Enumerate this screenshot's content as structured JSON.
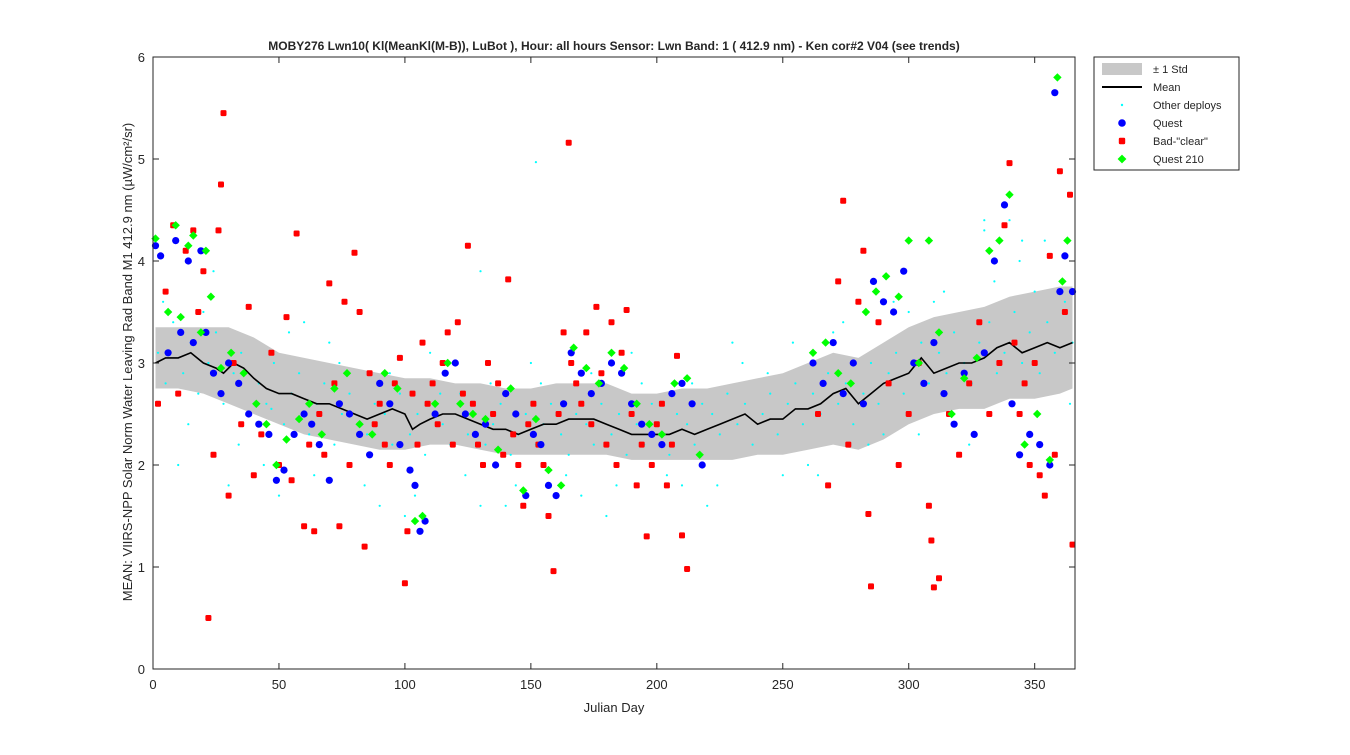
{
  "chart_data": {
    "type": "scatter",
    "title": "MOBY276   Lwn10( Kl(MeanKl(M-B)), LuBot ),   Hour: all hours  Sensor: Lwn Band: 1 ( 412.9 nm)  - Ken cor#2 V04 (see trends)",
    "xlabel": "Julian Day",
    "ylabel": "MEAN: VIIRS-NPP Solar Norm Water Leaving Rad Band M1 412.9 nm (µW/cm²/sr)",
    "xlim": [
      0,
      366
    ],
    "ylim": [
      0,
      6
    ],
    "xticks": [
      0,
      50,
      100,
      150,
      200,
      250,
      300,
      350
    ],
    "yticks": [
      0,
      1,
      2,
      3,
      4,
      5,
      6
    ],
    "legend_position": "outside-top-right",
    "colors": {
      "std_band": "#c8c8c8",
      "mean": "#000000",
      "other": "#00ffff",
      "quest": "#0000ff",
      "bad_clear": "#ff0000",
      "quest210": "#00ff00"
    },
    "legend": [
      {
        "key": "std",
        "label": "± 1 Std"
      },
      {
        "key": "mean",
        "label": "Mean"
      },
      {
        "key": "other",
        "label": "Other deploys"
      },
      {
        "key": "quest",
        "label": "Quest"
      },
      {
        "key": "bad",
        "label": "Bad-\"clear\""
      },
      {
        "key": "q210",
        "label": "Quest 210"
      }
    ],
    "mean_series": {
      "name": "Mean",
      "x": [
        1,
        5,
        10,
        15,
        20,
        25,
        28,
        32,
        36,
        40,
        45,
        50,
        55,
        60,
        65,
        70,
        75,
        80,
        85,
        90,
        95,
        100,
        103,
        106,
        110,
        115,
        120,
        125,
        130,
        135,
        140,
        145,
        150,
        155,
        160,
        165,
        170,
        175,
        180,
        185,
        190,
        195,
        200,
        205,
        210,
        215,
        220,
        225,
        230,
        235,
        240,
        245,
        250,
        255,
        260,
        265,
        270,
        275,
        280,
        285,
        290,
        295,
        300,
        305,
        310,
        315,
        320,
        325,
        330,
        335,
        340,
        345,
        350,
        355,
        360,
        365
      ],
      "y": [
        3.0,
        3.05,
        3.05,
        3.1,
        3.0,
        2.95,
        2.9,
        3.0,
        2.95,
        2.85,
        2.75,
        2.7,
        2.7,
        2.65,
        2.6,
        2.6,
        2.55,
        2.5,
        2.45,
        2.5,
        2.55,
        2.5,
        2.35,
        2.4,
        2.45,
        2.5,
        2.5,
        2.45,
        2.4,
        2.35,
        2.35,
        2.3,
        2.35,
        2.4,
        2.4,
        2.45,
        2.45,
        2.45,
        2.4,
        2.35,
        2.3,
        2.3,
        2.3,
        2.3,
        2.35,
        2.3,
        2.35,
        2.4,
        2.45,
        2.5,
        2.4,
        2.45,
        2.45,
        2.55,
        2.55,
        2.6,
        2.7,
        2.75,
        2.6,
        2.7,
        2.8,
        2.85,
        2.9,
        3.05,
        2.9,
        2.95,
        3.0,
        3.0,
        3.05,
        3.15,
        3.2,
        3.1,
        3.15,
        3.2,
        3.15,
        3.2
      ]
    },
    "std_band": {
      "name": "± 1 Std",
      "x": [
        1,
        10,
        20,
        30,
        40,
        50,
        60,
        70,
        80,
        90,
        100,
        110,
        120,
        130,
        140,
        150,
        160,
        170,
        180,
        190,
        200,
        210,
        220,
        230,
        240,
        250,
        260,
        270,
        280,
        290,
        300,
        310,
        320,
        330,
        340,
        350,
        360,
        365
      ],
      "lower": [
        2.75,
        2.75,
        2.7,
        2.6,
        2.5,
        2.4,
        2.3,
        2.25,
        2.2,
        2.15,
        2.15,
        2.2,
        2.2,
        2.15,
        2.1,
        2.1,
        2.1,
        2.1,
        2.1,
        2.05,
        2.05,
        2.05,
        2.05,
        2.05,
        2.1,
        2.1,
        2.15,
        2.2,
        2.15,
        2.25,
        2.4,
        2.5,
        2.55,
        2.55,
        2.65,
        2.65,
        2.7,
        2.75
      ],
      "upper": [
        3.35,
        3.35,
        3.35,
        3.35,
        3.25,
        3.1,
        3.05,
        3.0,
        2.95,
        2.9,
        2.85,
        2.85,
        2.8,
        2.8,
        2.75,
        2.75,
        2.8,
        2.8,
        2.8,
        2.7,
        2.7,
        2.75,
        2.75,
        2.8,
        2.85,
        2.9,
        3.0,
        3.1,
        3.05,
        3.2,
        3.35,
        3.45,
        3.5,
        3.55,
        3.65,
        3.7,
        3.75,
        3.75
      ]
    },
    "other_deploys": {
      "name": "Other deploys",
      "x": [
        2,
        5,
        8,
        12,
        15,
        18,
        22,
        25,
        28,
        32,
        35,
        38,
        42,
        45,
        48,
        52,
        55,
        58,
        62,
        65,
        68,
        72,
        75,
        78,
        82,
        85,
        88,
        92,
        95,
        98,
        102,
        105,
        108,
        112,
        115,
        118,
        122,
        125,
        128,
        132,
        135,
        138,
        142,
        145,
        148,
        152,
        155,
        158,
        162,
        165,
        168,
        172,
        175,
        178,
        182,
        185,
        188,
        192,
        195,
        198,
        202,
        205,
        208,
        212,
        215,
        218,
        222,
        225,
        228,
        232,
        235,
        238,
        242,
        245,
        248,
        252,
        255,
        258,
        262,
        265,
        268,
        272,
        275,
        278,
        282,
        285,
        288,
        292,
        295,
        298,
        302,
        305,
        308,
        312,
        315,
        318,
        322,
        325,
        328,
        332,
        335,
        338,
        342,
        345,
        348,
        352,
        355,
        358,
        362,
        365,
        4,
        14,
        24,
        34,
        44,
        54,
        64,
        74,
        84,
        94,
        104,
        114,
        124,
        134,
        144,
        154,
        164,
        174,
        184,
        194,
        204,
        214,
        224,
        234,
        244,
        254,
        264,
        274,
        284,
        294,
        304,
        314,
        324,
        334,
        344,
        354,
        364,
        10,
        30,
        50,
        70,
        90,
        110,
        130,
        150,
        170,
        190,
        210,
        230,
        250,
        270,
        290,
        310,
        330,
        350,
        20,
        60,
        100,
        140,
        180,
        220,
        260,
        300,
        340,
        152,
        130,
        47,
        330,
        345
      ],
      "y": [
        3.1,
        2.8,
        3.4,
        2.9,
        3.2,
        2.7,
        3.0,
        3.3,
        2.6,
        2.9,
        3.1,
        2.5,
        2.8,
        2.6,
        3.0,
        2.4,
        2.7,
        2.9,
        2.3,
        2.6,
        2.8,
        2.2,
        2.5,
        2.7,
        2.4,
        2.3,
        2.6,
        2.5,
        2.2,
        2.7,
        2.3,
        2.5,
        2.1,
        2.6,
        2.4,
        2.2,
        2.7,
        2.3,
        2.5,
        2.2,
        2.4,
        2.6,
        2.1,
        2.3,
        2.5,
        2.2,
        2.4,
        2.6,
        2.3,
        2.1,
        2.5,
        2.4,
        2.2,
        2.6,
        2.3,
        2.5,
        2.1,
        2.4,
        2.2,
        2.6,
        2.3,
        2.1,
        2.5,
        2.4,
        2.2,
        2.6,
        2.5,
        2.3,
        2.7,
        2.4,
        2.6,
        2.2,
        2.5,
        2.7,
        2.3,
        2.6,
        2.8,
        2.4,
        2.7,
        2.5,
        2.9,
        2.6,
        2.8,
        2.4,
        2.7,
        3.0,
        2.6,
        2.9,
        3.1,
        2.7,
        3.0,
        3.2,
        2.8,
        3.1,
        2.9,
        3.3,
        3.0,
        2.8,
        3.2,
        3.4,
        2.9,
        3.1,
        3.5,
        3.0,
        3.3,
        2.9,
        3.4,
        3.1,
        3.6,
        3.2,
        3.6,
        2.4,
        3.9,
        2.2,
        2.0,
        3.3,
        1.9,
        3.0,
        1.8,
        2.9,
        1.7,
        2.7,
        1.9,
        2.8,
        1.8,
        2.8,
        1.9,
        2.9,
        1.8,
        2.8,
        1.9,
        2.8,
        1.8,
        3.0,
        2.9,
        3.2,
        1.9,
        3.4,
        2.2,
        3.6,
        2.3,
        3.7,
        2.2,
        3.8,
        4.0,
        4.2,
        2.6,
        2.0,
        1.8,
        1.7,
        3.2,
        1.6,
        3.1,
        1.6,
        3.0,
        1.7,
        3.1,
        1.8,
        3.2,
        1.9,
        3.3,
        2.3,
        3.6,
        4.3,
        3.7,
        3.5,
        3.4,
        1.5,
        1.6,
        1.5,
        1.6,
        2.0,
        3.5,
        4.4,
        4.97,
        3.9,
        2.55,
        4.4,
        4.2
      ]
    },
    "quest": {
      "name": "Quest",
      "x": [
        1,
        3,
        6,
        9,
        11,
        14,
        16,
        19,
        21,
        24,
        27,
        30,
        34,
        38,
        42,
        46,
        49,
        52,
        56,
        60,
        63,
        66,
        70,
        74,
        78,
        82,
        86,
        90,
        94,
        98,
        102,
        104,
        106,
        108,
        112,
        116,
        120,
        124,
        128,
        132,
        136,
        140,
        144,
        148,
        151,
        154,
        157,
        160,
        163,
        166,
        170,
        174,
        178,
        182,
        186,
        190,
        194,
        198,
        202,
        206,
        210,
        214,
        218,
        262,
        266,
        270,
        274,
        278,
        282,
        286,
        290,
        294,
        298,
        302,
        306,
        310,
        314,
        318,
        322,
        326,
        330,
        334,
        338,
        341,
        344,
        348,
        352,
        356,
        358,
        360,
        362,
        365
      ],
      "y": [
        4.15,
        4.05,
        3.1,
        4.2,
        3.3,
        4.0,
        3.2,
        4.1,
        3.3,
        2.9,
        2.7,
        3.0,
        2.8,
        2.5,
        2.4,
        2.3,
        1.85,
        1.95,
        2.3,
        2.5,
        2.4,
        2.2,
        1.85,
        2.6,
        2.5,
        2.3,
        2.1,
        2.8,
        2.6,
        2.2,
        1.95,
        1.8,
        1.35,
        1.45,
        2.5,
        2.9,
        3.0,
        2.5,
        2.3,
        2.4,
        2.0,
        2.7,
        2.5,
        1.7,
        2.3,
        2.2,
        1.8,
        1.7,
        2.6,
        3.1,
        2.9,
        2.7,
        2.8,
        3.0,
        2.9,
        2.6,
        2.4,
        2.3,
        2.2,
        2.7,
        2.8,
        2.6,
        2.0,
        3.0,
        2.8,
        3.2,
        2.7,
        3.0,
        2.6,
        3.8,
        3.6,
        3.5,
        3.9,
        3.0,
        2.8,
        3.2,
        2.7,
        2.4,
        2.9,
        2.3,
        3.1,
        4.0,
        4.55,
        2.6,
        2.1,
        2.3,
        2.2,
        2.0,
        5.65,
        3.7,
        4.05,
        3.7
      ]
    },
    "bad_clear": {
      "name": "Bad-\"clear\"",
      "x": [
        2,
        5,
        8,
        10,
        13,
        16,
        18,
        20,
        22,
        24,
        26,
        27,
        28,
        30,
        32,
        35,
        38,
        40,
        43,
        47,
        50,
        53,
        55,
        57,
        60,
        62,
        64,
        66,
        68,
        70,
        72,
        74,
        76,
        78,
        80,
        82,
        84,
        86,
        88,
        90,
        92,
        94,
        96,
        98,
        100,
        101,
        103,
        105,
        107,
        109,
        111,
        113,
        115,
        117,
        119,
        121,
        123,
        125,
        127,
        129,
        131,
        133,
        135,
        137,
        139,
        141,
        143,
        145,
        147,
        149,
        151,
        153,
        155,
        157,
        159,
        161,
        163,
        165,
        166,
        168,
        170,
        172,
        174,
        176,
        178,
        180,
        182,
        184,
        186,
        188,
        190,
        192,
        194,
        196,
        198,
        200,
        202,
        204,
        206,
        208,
        210,
        212,
        264,
        268,
        272,
        274,
        276,
        280,
        282,
        284,
        285,
        288,
        292,
        296,
        300,
        304,
        308,
        309,
        310,
        312,
        316,
        320,
        324,
        328,
        332,
        336,
        338,
        340,
        342,
        344,
        346,
        348,
        350,
        352,
        354,
        356,
        358,
        360,
        362,
        364,
        365
      ],
      "y": [
        2.6,
        3.7,
        4.35,
        2.7,
        4.1,
        4.3,
        3.5,
        3.9,
        0.5,
        2.1,
        4.3,
        4.75,
        5.45,
        1.7,
        3.0,
        2.4,
        3.55,
        1.9,
        2.3,
        3.1,
        2.0,
        3.45,
        1.85,
        4.27,
        1.4,
        2.2,
        1.35,
        2.5,
        2.1,
        3.78,
        2.8,
        1.4,
        3.6,
        2.0,
        4.08,
        3.5,
        1.2,
        2.9,
        2.4,
        2.6,
        2.2,
        2.0,
        2.8,
        3.05,
        0.84,
        1.35,
        2.7,
        2.2,
        3.2,
        2.6,
        2.8,
        2.4,
        3.0,
        3.3,
        2.2,
        3.4,
        2.7,
        4.15,
        2.6,
        2.2,
        2.0,
        3.0,
        2.5,
        2.8,
        2.1,
        3.82,
        2.3,
        2.0,
        1.6,
        2.4,
        2.6,
        2.2,
        2.0,
        1.5,
        0.96,
        2.5,
        3.3,
        5.16,
        3.0,
        2.8,
        2.6,
        3.3,
        2.4,
        3.55,
        2.9,
        2.2,
        3.4,
        2.0,
        3.1,
        3.52,
        2.5,
        1.8,
        2.2,
        1.3,
        2.0,
        2.4,
        2.6,
        1.8,
        2.2,
        3.07,
        1.31,
        0.98,
        2.5,
        1.8,
        3.8,
        4.59,
        2.2,
        3.6,
        4.1,
        1.52,
        0.81,
        3.4,
        2.8,
        2.0,
        2.5,
        3.0,
        1.6,
        1.26,
        0.8,
        0.89,
        2.5,
        2.1,
        2.8,
        3.4,
        2.5,
        3.0,
        4.35,
        4.96,
        3.2,
        2.5,
        2.8,
        2.0,
        3.0,
        1.9,
        1.7,
        4.05,
        2.1,
        4.88,
        3.5,
        4.65,
        1.22
      ]
    },
    "quest210": {
      "name": "Quest 210",
      "x": [
        1,
        6,
        9,
        11,
        14,
        16,
        19,
        21,
        23,
        27,
        31,
        36,
        41,
        45,
        49,
        53,
        58,
        62,
        67,
        72,
        77,
        82,
        87,
        92,
        97,
        104,
        107,
        112,
        117,
        122,
        127,
        132,
        137,
        142,
        147,
        152,
        157,
        162,
        167,
        172,
        177,
        182,
        187,
        192,
        197,
        202,
        207,
        212,
        217,
        262,
        267,
        272,
        277,
        283,
        287,
        291,
        296,
        300,
        304,
        308,
        312,
        317,
        322,
        327,
        332,
        336,
        340,
        346,
        351,
        356,
        359,
        361,
        363
      ],
      "y": [
        4.22,
        3.5,
        4.35,
        3.45,
        4.15,
        4.25,
        3.3,
        4.1,
        3.65,
        2.95,
        3.1,
        2.9,
        2.6,
        2.4,
        2.0,
        2.25,
        2.45,
        2.6,
        2.3,
        2.75,
        2.9,
        2.4,
        2.3,
        2.9,
        2.75,
        1.45,
        1.5,
        2.6,
        3.0,
        2.6,
        2.5,
        2.45,
        2.15,
        2.75,
        1.75,
        2.45,
        1.95,
        1.8,
        3.15,
        2.95,
        2.8,
        3.1,
        2.95,
        2.6,
        2.4,
        2.3,
        2.8,
        2.85,
        2.1,
        3.1,
        3.2,
        2.9,
        2.8,
        3.5,
        3.7,
        3.85,
        3.65,
        4.2,
        3.0,
        4.2,
        3.3,
        2.5,
        2.85,
        3.05,
        4.1,
        4.2,
        4.65,
        2.2,
        2.5,
        2.05,
        5.8,
        3.8,
        4.2
      ]
    }
  }
}
